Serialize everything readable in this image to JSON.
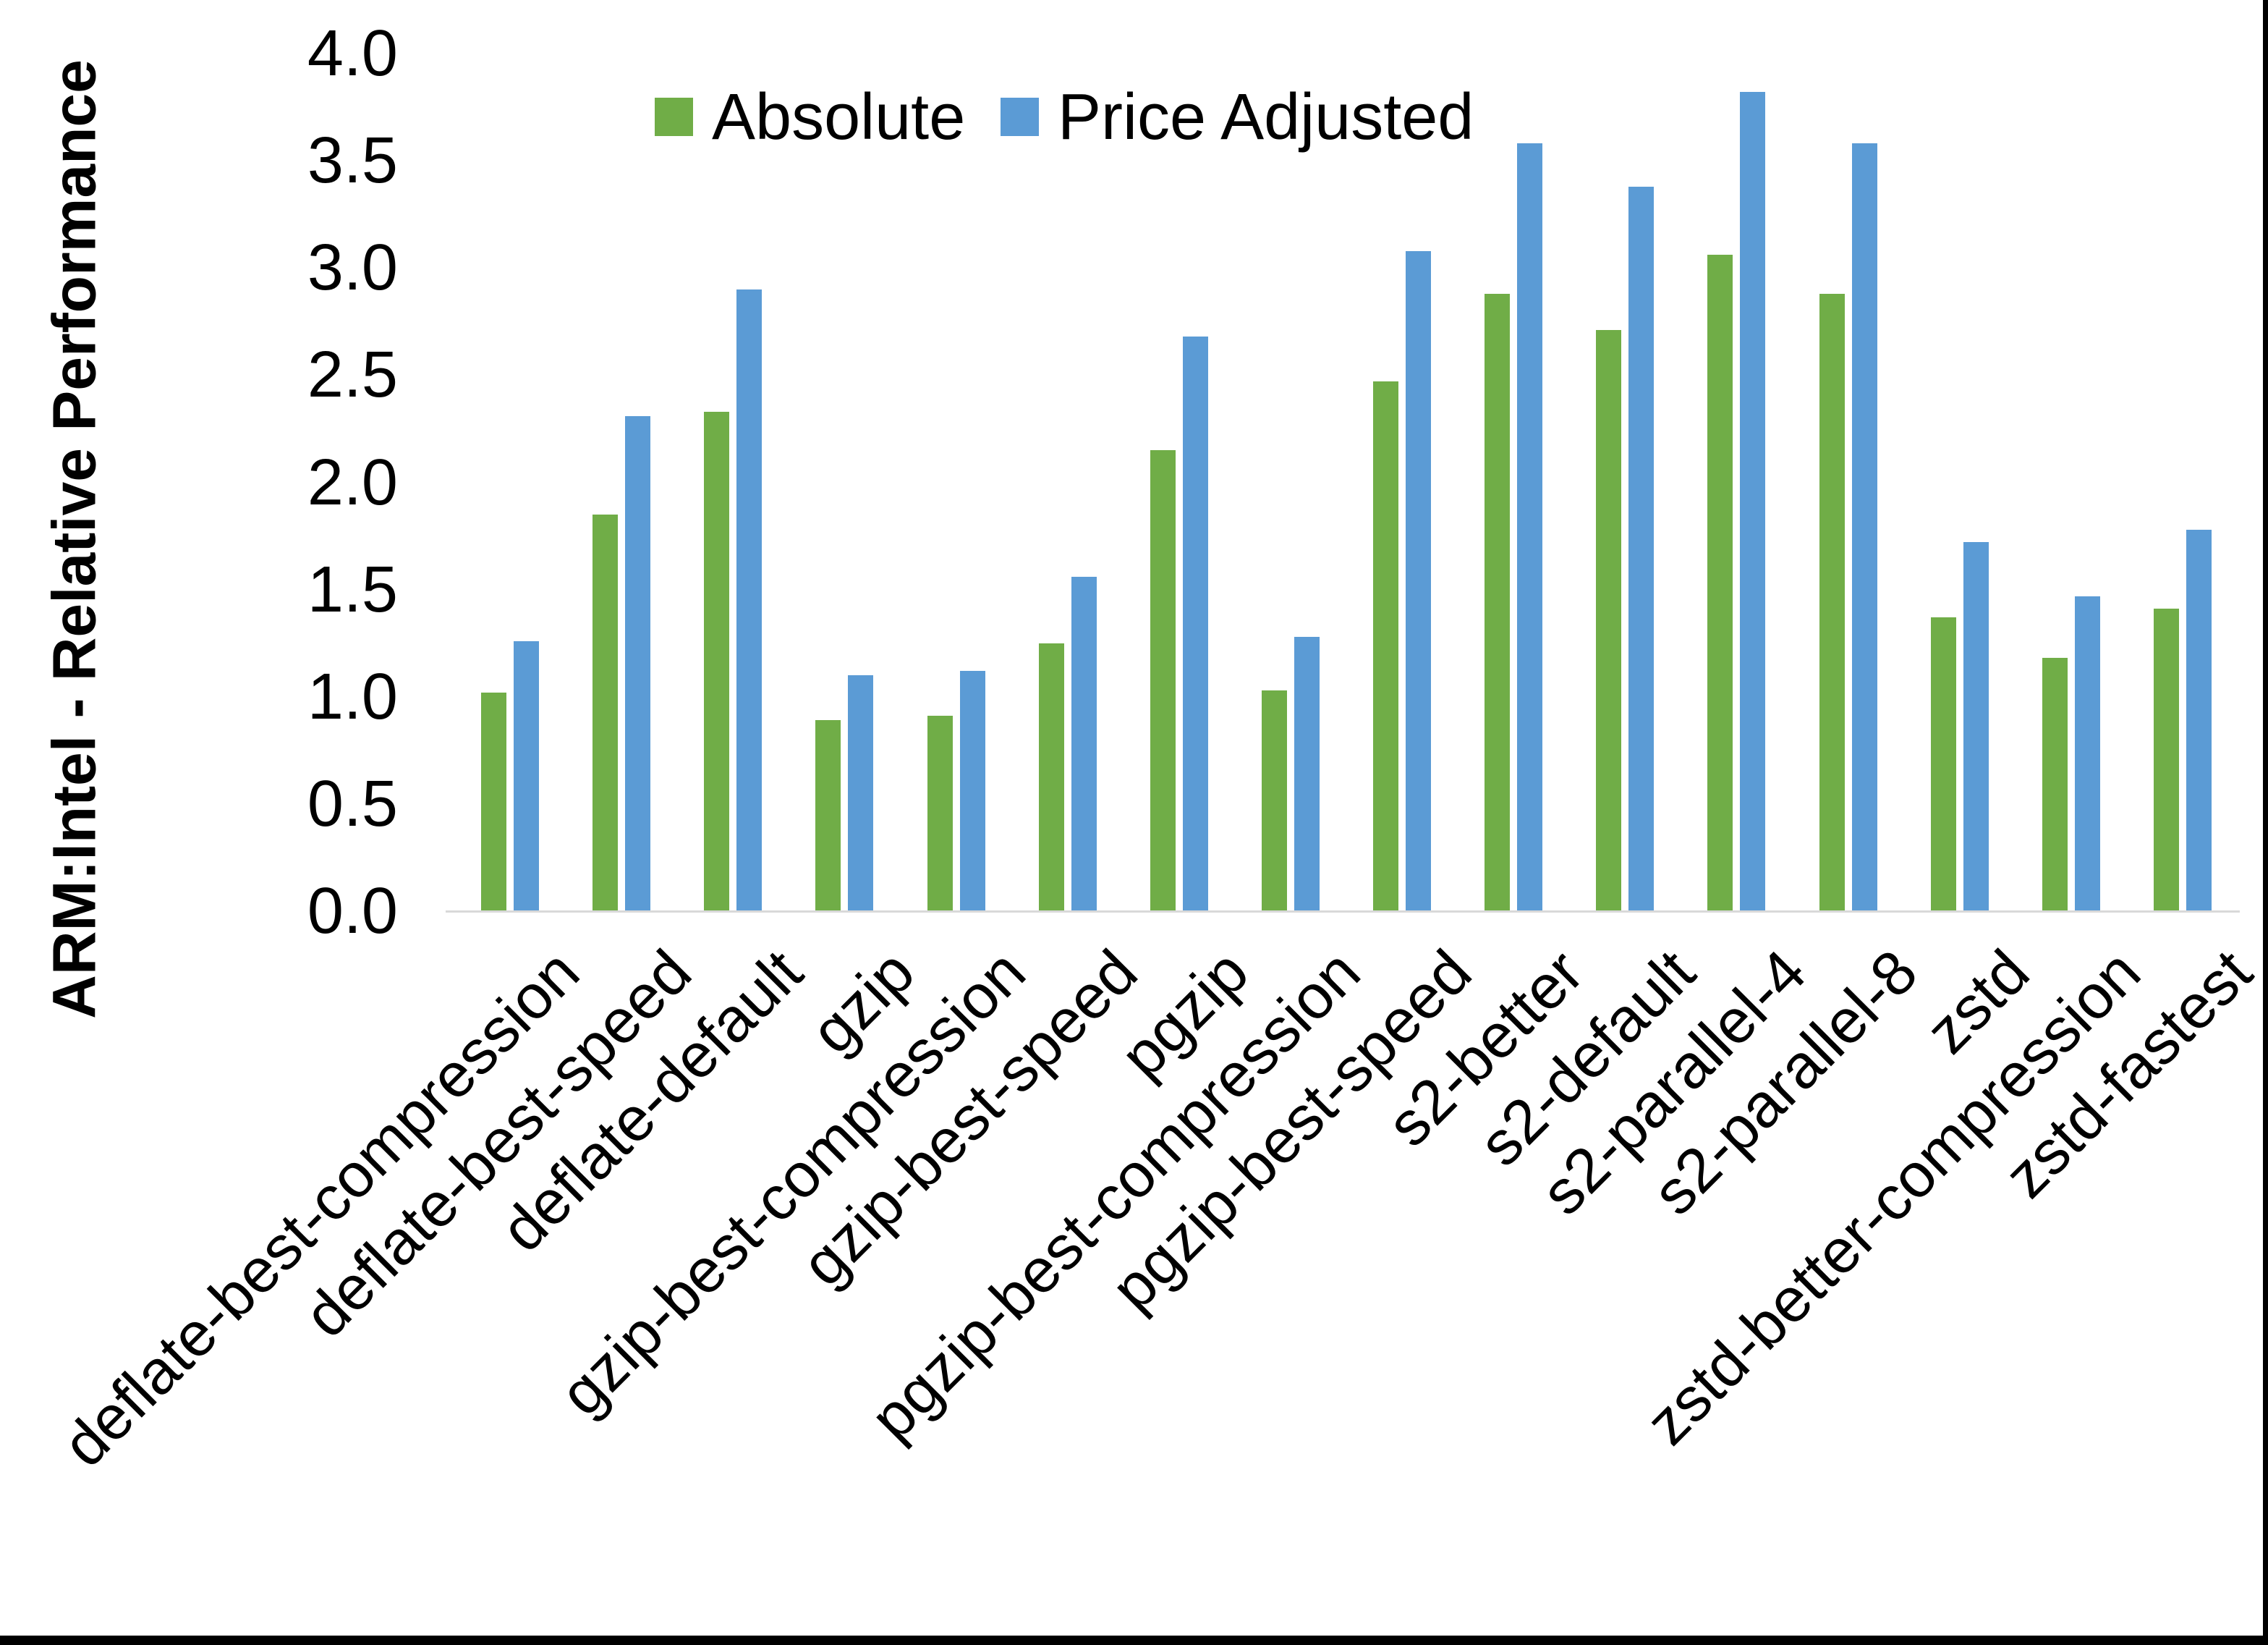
{
  "chart_data": {
    "type": "bar",
    "title": "",
    "xlabel": "",
    "ylabel": "ARM:Intel - Relative Performance",
    "ylim": [
      0.0,
      4.0
    ],
    "ytick_step": 0.5,
    "ytick_labels": [
      "4.0",
      "3.5",
      "3.0",
      "2.5",
      "2.0",
      "1.5",
      "1.0",
      "0.5",
      "0.0"
    ],
    "grid": false,
    "legend_position": "top-center",
    "categories": [
      "deflate-best-compression",
      "deflate-best-speed",
      "deflate-default",
      "gzip",
      "gzip-best-compression",
      "gzip-best-speed",
      "pgzip",
      "pgzip-best-compression",
      "pgzip-best-speed",
      "s2-better",
      "s2-default",
      "s2-parallel-4",
      "s2-parallel-8",
      "zstd",
      "zstd-better-compression",
      "zstd-fastest"
    ],
    "series": [
      {
        "name": "Absolute",
        "color": "#70AD47",
        "values": [
          1.02,
          1.85,
          2.33,
          0.89,
          0.91,
          1.25,
          2.15,
          1.03,
          2.47,
          2.88,
          2.71,
          3.06,
          2.88,
          1.37,
          1.18,
          1.41
        ]
      },
      {
        "name": "Price Adjusted",
        "color": "#5B9BD5",
        "values": [
          1.26,
          2.31,
          2.9,
          1.1,
          1.12,
          1.56,
          2.68,
          1.28,
          3.08,
          3.58,
          3.38,
          3.82,
          3.58,
          1.72,
          1.47,
          1.78
        ]
      }
    ],
    "axis_line_color": "#D9D9D9",
    "text_color": "#000000",
    "page_border_color": "#000000"
  }
}
